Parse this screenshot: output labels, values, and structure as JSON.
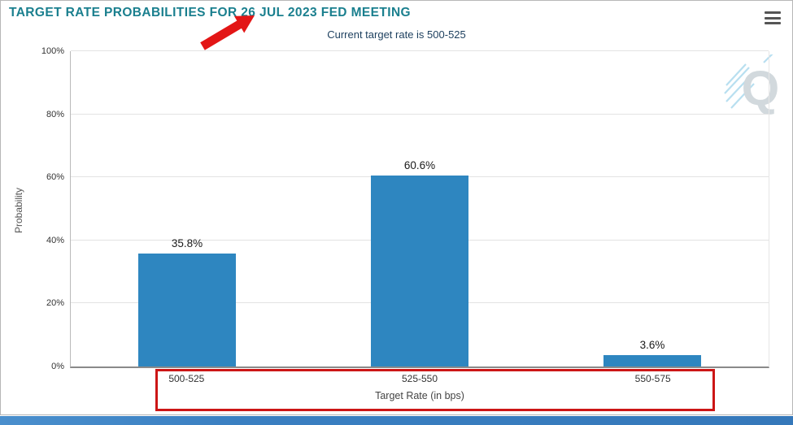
{
  "header": {
    "title": "TARGET RATE PROBABILITIES FOR 26 JUL 2023 FED MEETING",
    "subtitle": "Current target rate is 500-525"
  },
  "menu": {
    "icon": "hamburger-menu-icon"
  },
  "watermark": {
    "letter": "Q"
  },
  "chart_data": {
    "type": "bar",
    "title": "TARGET RATE PROBABILITIES FOR 26 JUL 2023 FED MEETING",
    "subtitle": "Current target rate is 500-525",
    "categories": [
      "500-525",
      "525-550",
      "550-575"
    ],
    "values": [
      35.8,
      60.6,
      3.6
    ],
    "value_labels": [
      "35.8%",
      "60.6%",
      "3.6%"
    ],
    "xlabel": "Target Rate (in bps)",
    "ylabel": "Probability",
    "ylim": [
      0,
      100
    ],
    "yticks": [
      "0%",
      "20%",
      "40%",
      "60%",
      "80%",
      "100%"
    ],
    "grid": true,
    "legend": "none",
    "bar_color": "#2E86C0"
  },
  "annotations": {
    "arrow_color": "#E31616",
    "highlight_box_color": "#CC1616"
  },
  "colors": {
    "title": "#1A7F8E",
    "subtitle": "#1C3F5E",
    "bottom_bar": "#3A7FC1"
  }
}
